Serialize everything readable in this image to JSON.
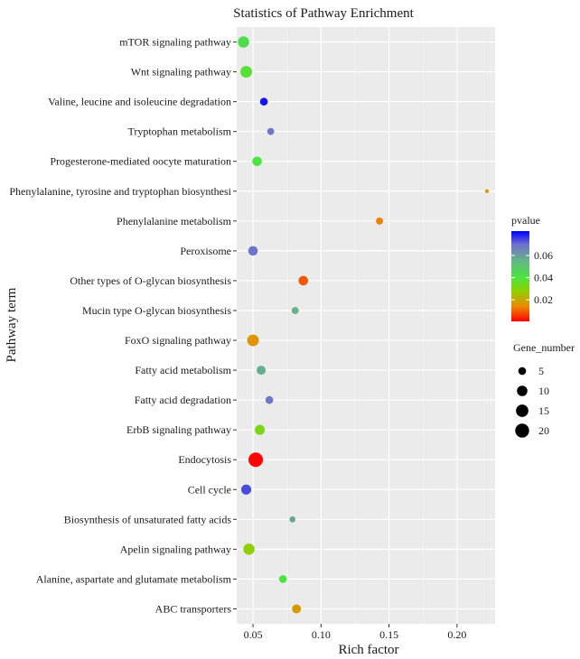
{
  "chart_data": {
    "type": "scatter",
    "title": "Statistics of Pathway Enrichment",
    "xlabel": "Rich factor",
    "ylabel": "Pathway term",
    "xlim": [
      0.038,
      0.228
    ],
    "xticks": [
      0.05,
      0.1,
      0.15,
      0.2
    ],
    "xtick_labels": [
      "0.05",
      "0.10",
      "0.15",
      "0.20"
    ],
    "grid": true,
    "categories": [
      "mTOR signaling pathway",
      "Wnt signaling pathway",
      "Valine, leucine and isoleucine degradation",
      "Tryptophan metabolism",
      "Progesterone-mediated oocyte maturation",
      "Phenylalanine, tyrosine and tryptophan biosynthesi",
      "Phenylalanine metabolism",
      "Peroxisome",
      "Other types of O-glycan biosynthesis",
      "Mucin type O-glycan biosynthesis",
      "FoxO signaling pathway",
      "Fatty acid metabolism",
      "Fatty acid degradation",
      "ErbB signaling pathway",
      "Endocytosis",
      "Cell cycle",
      "Biosynthesis of unsaturated fatty acids",
      "Apelin signaling pathway",
      "Alanine, aspartate and glutamate metabolism",
      "ABC transporters"
    ],
    "points": [
      {
        "term": "mTOR signaling pathway",
        "rich_factor": 0.043,
        "pvalue": 0.042,
        "gene_number": 12
      },
      {
        "term": "Wnt signaling pathway",
        "rich_factor": 0.045,
        "pvalue": 0.038,
        "gene_number": 13
      },
      {
        "term": "Valine, leucine and isoleucine degradation",
        "rich_factor": 0.058,
        "pvalue": 0.08,
        "gene_number": 5
      },
      {
        "term": "Tryptophan metabolism",
        "rich_factor": 0.063,
        "pvalue": 0.068,
        "gene_number": 4
      },
      {
        "term": "Progesterone-mediated oocyte maturation",
        "rich_factor": 0.053,
        "pvalue": 0.04,
        "gene_number": 8
      },
      {
        "term": "Phenylalanine, tyrosine and tryptophan biosynthesi",
        "rich_factor": 0.222,
        "pvalue": 0.015,
        "gene_number": 2
      },
      {
        "term": "Phenylalanine metabolism",
        "rich_factor": 0.143,
        "pvalue": 0.013,
        "gene_number": 4
      },
      {
        "term": "Peroxisome",
        "rich_factor": 0.05,
        "pvalue": 0.069,
        "gene_number": 8
      },
      {
        "term": "Other types of O-glycan biosynthesis",
        "rich_factor": 0.087,
        "pvalue": 0.009,
        "gene_number": 8
      },
      {
        "term": "Mucin type O-glycan biosynthesis",
        "rich_factor": 0.081,
        "pvalue": 0.056,
        "gene_number": 4
      },
      {
        "term": "FoxO signaling pathway",
        "rich_factor": 0.05,
        "pvalue": 0.016,
        "gene_number": 13
      },
      {
        "term": "Fatty acid metabolism",
        "rich_factor": 0.056,
        "pvalue": 0.057,
        "gene_number": 7
      },
      {
        "term": "Fatty acid degradation",
        "rich_factor": 0.062,
        "pvalue": 0.068,
        "gene_number": 5
      },
      {
        "term": "ErbB signaling pathway",
        "rich_factor": 0.055,
        "pvalue": 0.032,
        "gene_number": 9
      },
      {
        "term": "Endocytosis",
        "rich_factor": 0.052,
        "pvalue": 0.001,
        "gene_number": 22
      },
      {
        "term": "Cell cycle",
        "rich_factor": 0.045,
        "pvalue": 0.074,
        "gene_number": 9
      },
      {
        "term": "Biosynthesis of unsaturated fatty acids",
        "rich_factor": 0.079,
        "pvalue": 0.058,
        "gene_number": 3
      },
      {
        "term": "Apelin signaling pathway",
        "rich_factor": 0.047,
        "pvalue": 0.028,
        "gene_number": 12
      },
      {
        "term": "Alanine, aspartate and glutamate metabolism",
        "rich_factor": 0.072,
        "pvalue": 0.041,
        "gene_number": 5
      },
      {
        "term": "ABC transporters",
        "rich_factor": 0.082,
        "pvalue": 0.017,
        "gene_number": 7
      }
    ],
    "color_scale": {
      "variable": "pvalue",
      "domain": [
        0.0005,
        0.082
      ],
      "stops": [
        {
          "value": 0.0005,
          "color": "#ff0000"
        },
        {
          "value": 0.014,
          "color": "#ec8a00"
        },
        {
          "value": 0.028,
          "color": "#90d000"
        },
        {
          "value": 0.04,
          "color": "#4ce440"
        },
        {
          "value": 0.056,
          "color": "#66b28a"
        },
        {
          "value": 0.07,
          "color": "#6f6fcf"
        },
        {
          "value": 0.082,
          "color": "#0000ff"
        }
      ],
      "ticks": [
        0.02,
        0.04,
        0.06
      ],
      "tick_labels": [
        "0.02",
        "0.04",
        "0.06"
      ]
    },
    "size_scale": {
      "variable": "Gene_number",
      "domain": [
        2,
        22
      ],
      "breaks": [
        5,
        10,
        15,
        20
      ],
      "break_labels": [
        "5",
        "10",
        "15",
        "20"
      ]
    },
    "legend": {
      "color_title": "pvalue",
      "size_title": "Gene_number",
      "placement": "right"
    }
  }
}
